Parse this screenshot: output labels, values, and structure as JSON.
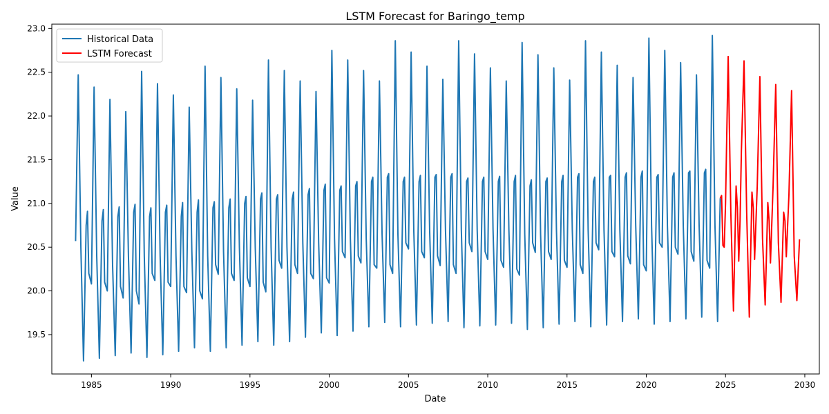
{
  "chart_data": {
    "type": "line",
    "title": "LSTM Forecast for Baringo_temp",
    "xlabel": "Date",
    "ylabel": "Value",
    "xlim": [
      "1982-07-01",
      "2030-12-01"
    ],
    "ylim": [
      19.05,
      23.05
    ],
    "x_ticks": [
      "1985",
      "1990",
      "1995",
      "2000",
      "2005",
      "2010",
      "2015",
      "2020",
      "2025",
      "2030"
    ],
    "y_ticks": [
      "19.5",
      "20.0",
      "20.5",
      "21.0",
      "21.5",
      "22.0",
      "22.5",
      "23.0"
    ],
    "grid": false,
    "legend_position": "top-left",
    "historical_range": [
      "1984-01",
      "2024-09"
    ],
    "forecast_range": [
      "2024-10",
      "2029-09"
    ],
    "series": [
      {
        "name": "Historical Data",
        "color": "#1f77b4",
        "x": [
          "1984-01",
          "1984-03",
          "1984-05",
          "1984-07",
          "1984-09",
          "1984-10",
          "1984-11",
          "1985-01",
          "1985-03",
          "1985-05",
          "1985-07",
          "1985-09",
          "1985-10",
          "1985-11",
          "1986-01",
          "1986-03",
          "1986-05",
          "1986-07",
          "1986-09",
          "1986-10",
          "1986-11",
          "1987-01",
          "1987-03",
          "1987-05",
          "1987-07",
          "1987-09",
          "1987-10",
          "1987-11",
          "1988-01",
          "1988-03",
          "1988-05",
          "1988-07",
          "1988-09",
          "1988-10",
          "1988-11",
          "1989-01",
          "1989-03",
          "1989-05",
          "1989-07",
          "1989-09",
          "1989-10",
          "1989-11",
          "1990-01",
          "1990-03",
          "1990-05",
          "1990-07",
          "1990-09",
          "1990-10",
          "1990-11",
          "1991-01",
          "1991-03",
          "1991-05",
          "1991-07",
          "1991-09",
          "1991-10",
          "1991-11",
          "1992-01",
          "1992-03",
          "1992-05",
          "1992-07",
          "1992-09",
          "1992-10",
          "1992-11",
          "1993-01",
          "1993-03",
          "1993-05",
          "1993-07",
          "1993-09",
          "1993-10",
          "1993-11",
          "1994-01",
          "1994-03",
          "1994-05",
          "1994-07",
          "1994-09",
          "1994-10",
          "1994-11",
          "1995-01",
          "1995-03",
          "1995-05",
          "1995-07",
          "1995-09",
          "1995-10",
          "1995-11",
          "1996-01",
          "1996-03",
          "1996-05",
          "1996-07",
          "1996-09",
          "1996-10",
          "1996-11",
          "1997-01",
          "1997-03",
          "1997-05",
          "1997-07",
          "1997-09",
          "1997-10",
          "1997-11",
          "1998-01",
          "1998-03",
          "1998-05",
          "1998-07",
          "1998-09",
          "1998-10",
          "1998-11",
          "1999-01",
          "1999-03",
          "1999-05",
          "1999-07",
          "1999-09",
          "1999-10",
          "1999-11",
          "2000-01",
          "2000-03",
          "2000-05",
          "2000-07",
          "2000-09",
          "2000-10",
          "2000-11",
          "2001-01",
          "2001-03",
          "2001-05",
          "2001-07",
          "2001-09",
          "2001-10",
          "2001-11",
          "2002-01",
          "2002-03",
          "2002-05",
          "2002-07",
          "2002-09",
          "2002-10",
          "2002-11",
          "2003-01",
          "2003-03",
          "2003-05",
          "2003-07",
          "2003-09",
          "2003-10",
          "2003-11",
          "2004-01",
          "2004-03",
          "2004-05",
          "2004-07",
          "2004-09",
          "2004-10",
          "2004-11",
          "2005-01",
          "2005-03",
          "2005-05",
          "2005-07",
          "2005-09",
          "2005-10",
          "2005-11",
          "2006-01",
          "2006-03",
          "2006-05",
          "2006-07",
          "2006-09",
          "2006-10",
          "2006-11",
          "2007-01",
          "2007-03",
          "2007-05",
          "2007-07",
          "2007-09",
          "2007-10",
          "2007-11",
          "2008-01",
          "2008-03",
          "2008-05",
          "2008-07",
          "2008-09",
          "2008-10",
          "2008-11",
          "2009-01",
          "2009-03",
          "2009-05",
          "2009-07",
          "2009-09",
          "2009-10",
          "2009-11",
          "2010-01",
          "2010-03",
          "2010-05",
          "2010-07",
          "2010-09",
          "2010-10",
          "2010-11",
          "2011-01",
          "2011-03",
          "2011-05",
          "2011-07",
          "2011-09",
          "2011-10",
          "2011-11",
          "2012-01",
          "2012-03",
          "2012-05",
          "2012-07",
          "2012-09",
          "2012-10",
          "2012-11",
          "2013-01",
          "2013-03",
          "2013-05",
          "2013-07",
          "2013-09",
          "2013-10",
          "2013-11",
          "2014-01",
          "2014-03",
          "2014-05",
          "2014-07",
          "2014-09",
          "2014-10",
          "2014-11",
          "2015-01",
          "2015-03",
          "2015-05",
          "2015-07",
          "2015-09",
          "2015-10",
          "2015-11",
          "2016-01",
          "2016-03",
          "2016-05",
          "2016-07",
          "2016-09",
          "2016-10",
          "2016-11",
          "2017-01",
          "2017-03",
          "2017-05",
          "2017-07",
          "2017-09",
          "2017-10",
          "2017-11",
          "2018-01",
          "2018-03",
          "2018-05",
          "2018-07",
          "2018-09",
          "2018-10",
          "2018-11",
          "2019-01",
          "2019-03",
          "2019-05",
          "2019-07",
          "2019-09",
          "2019-10",
          "2019-11",
          "2020-01",
          "2020-03",
          "2020-05",
          "2020-07",
          "2020-09",
          "2020-10",
          "2020-11",
          "2021-01",
          "2021-03",
          "2021-05",
          "2021-07",
          "2021-09",
          "2021-10",
          "2021-11",
          "2022-01",
          "2022-03",
          "2022-05",
          "2022-07",
          "2022-09",
          "2022-10",
          "2022-11",
          "2023-01",
          "2023-03",
          "2023-05",
          "2023-07",
          "2023-09",
          "2023-10",
          "2023-11",
          "2024-01",
          "2024-03",
          "2024-05",
          "2024-07",
          "2024-09"
        ],
        "values": [
          20.57,
          22.47,
          20.5,
          19.2,
          20.75,
          20.91,
          20.2,
          20.08,
          22.33,
          20.4,
          19.23,
          20.8,
          20.93,
          20.1,
          20.0,
          22.19,
          20.3,
          19.26,
          20.85,
          20.96,
          20.05,
          19.92,
          22.05,
          20.4,
          19.29,
          20.9,
          20.99,
          20.0,
          19.85,
          22.51,
          20.4,
          19.24,
          20.85,
          20.95,
          20.2,
          20.12,
          22.37,
          20.4,
          19.27,
          20.9,
          20.98,
          20.1,
          20.05,
          22.24,
          20.4,
          19.31,
          20.85,
          21.01,
          20.05,
          19.98,
          22.1,
          20.45,
          19.35,
          20.9,
          21.04,
          20.0,
          19.91,
          22.57,
          20.4,
          19.31,
          20.95,
          21.02,
          20.3,
          20.19,
          22.44,
          20.45,
          19.35,
          20.95,
          21.05,
          20.2,
          20.12,
          22.31,
          20.5,
          19.38,
          21.0,
          21.08,
          20.15,
          20.05,
          22.18,
          20.5,
          19.42,
          21.05,
          21.12,
          20.1,
          19.99,
          22.64,
          20.5,
          19.38,
          21.05,
          21.1,
          20.35,
          20.26,
          22.52,
          20.5,
          19.42,
          21.05,
          21.13,
          20.3,
          20.2,
          22.4,
          20.55,
          19.47,
          21.1,
          21.17,
          20.2,
          20.14,
          22.28,
          20.55,
          19.52,
          21.15,
          21.22,
          20.15,
          20.09,
          22.75,
          20.6,
          19.49,
          21.15,
          21.2,
          20.45,
          20.38,
          22.64,
          20.6,
          19.54,
          21.2,
          21.25,
          20.4,
          20.32,
          22.52,
          20.6,
          19.59,
          21.25,
          21.3,
          20.3,
          20.26,
          22.4,
          20.65,
          19.64,
          21.3,
          21.34,
          20.3,
          20.2,
          22.86,
          20.65,
          19.59,
          21.25,
          21.3,
          20.55,
          20.48,
          22.73,
          20.7,
          19.61,
          21.25,
          21.32,
          20.45,
          20.38,
          22.57,
          20.7,
          19.63,
          21.3,
          21.33,
          20.4,
          20.29,
          22.42,
          20.7,
          19.65,
          21.3,
          21.34,
          20.3,
          20.2,
          22.86,
          20.7,
          19.58,
          21.25,
          21.29,
          20.55,
          20.45,
          22.71,
          20.7,
          19.6,
          21.25,
          21.3,
          20.45,
          20.36,
          22.55,
          20.7,
          19.61,
          21.25,
          21.31,
          20.35,
          20.27,
          22.4,
          20.7,
          19.63,
          21.25,
          21.32,
          20.25,
          20.18,
          22.84,
          20.65,
          19.56,
          21.2,
          21.27,
          20.55,
          20.44,
          22.7,
          20.65,
          19.58,
          21.25,
          21.29,
          20.45,
          20.36,
          22.55,
          20.7,
          19.62,
          21.25,
          21.32,
          20.35,
          20.27,
          22.41,
          20.7,
          19.65,
          21.3,
          21.34,
          20.3,
          20.2,
          22.86,
          20.7,
          19.59,
          21.25,
          21.3,
          20.55,
          20.47,
          22.73,
          20.7,
          19.61,
          21.3,
          21.32,
          20.45,
          20.39,
          22.58,
          20.7,
          19.65,
          21.3,
          21.35,
          20.4,
          20.31,
          22.44,
          20.75,
          19.68,
          21.3,
          21.37,
          20.3,
          20.23,
          22.89,
          20.75,
          19.62,
          21.3,
          21.33,
          20.55,
          20.5,
          22.75,
          20.75,
          19.65,
          21.3,
          21.35,
          20.5,
          20.42,
          22.61,
          20.75,
          19.68,
          21.35,
          21.37,
          20.45,
          20.34,
          22.47,
          20.75,
          19.7,
          21.35,
          21.39,
          20.35,
          20.26,
          22.92,
          20.75,
          19.65,
          21.06
        ]
      },
      {
        "name": "LSTM Forecast",
        "color": "#ff0000",
        "x": [
          "2024-09",
          "2024-10",
          "2024-11",
          "2024-12",
          "2025-01",
          "2025-03",
          "2025-05",
          "2025-07",
          "2025-09",
          "2025-10",
          "2025-11",
          "2025-12",
          "2026-01",
          "2026-03",
          "2026-05",
          "2026-07",
          "2026-09",
          "2026-10",
          "2026-11",
          "2027-01",
          "2027-03",
          "2027-05",
          "2027-07",
          "2027-09",
          "2027-10",
          "2027-11",
          "2028-01",
          "2028-03",
          "2028-05",
          "2028-07",
          "2028-09",
          "2028-10",
          "2028-11",
          "2029-01",
          "2029-03",
          "2029-05",
          "2029-07",
          "2029-09"
        ],
        "values": [
          21.06,
          21.09,
          20.52,
          20.5,
          21.0,
          22.68,
          20.9,
          19.77,
          21.2,
          20.95,
          20.34,
          20.8,
          21.6,
          22.63,
          20.9,
          19.7,
          21.13,
          20.95,
          20.36,
          21.2,
          22.45,
          20.6,
          19.84,
          21.01,
          20.8,
          20.32,
          21.2,
          22.36,
          20.55,
          19.87,
          20.9,
          20.8,
          20.39,
          21.1,
          22.29,
          20.4,
          19.89,
          20.59
        ]
      }
    ]
  }
}
